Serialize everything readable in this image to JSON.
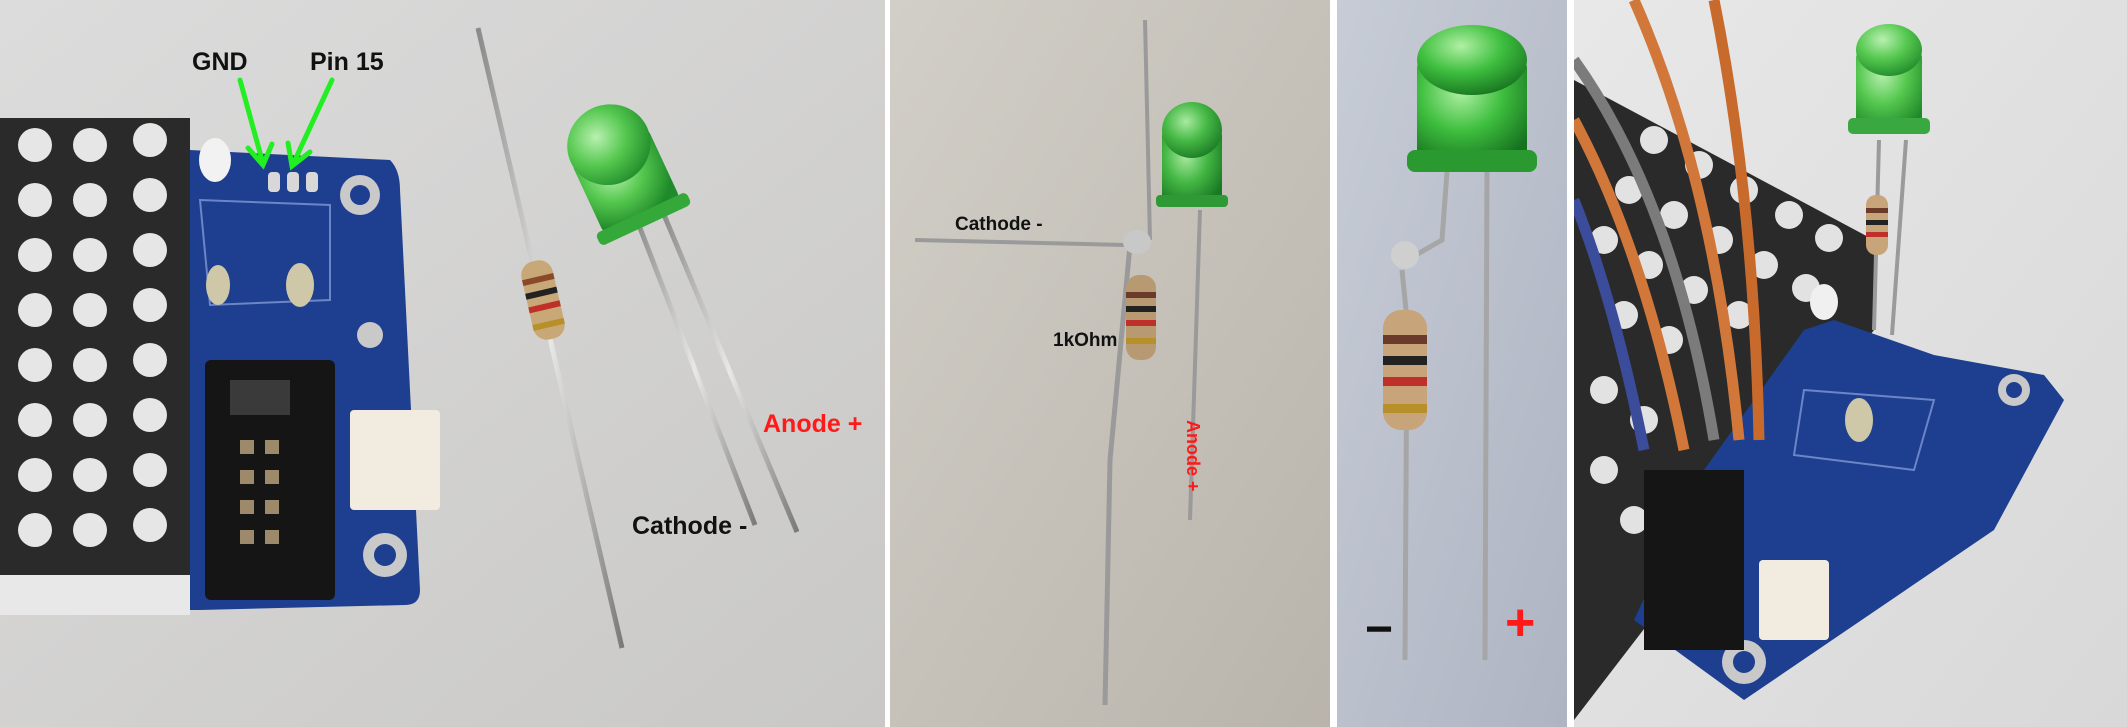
{
  "photos": [
    {
      "id": "board-overview",
      "labels": {
        "gnd": "GND",
        "pin15": "Pin 15",
        "anode": "Anode +",
        "cathode": "Cathode -"
      }
    },
    {
      "id": "soldered-resistor",
      "labels": {
        "cathode": "Cathode -",
        "resistor": "1kOhm",
        "anode": "Anode +"
      }
    },
    {
      "id": "led-closeup",
      "labels": {
        "minus": "−",
        "plus": "+"
      }
    },
    {
      "id": "mounted-led"
    }
  ],
  "colors": {
    "black_label": "#111111",
    "red_label": "#ff1a1a",
    "arrow_green": "#22ee22",
    "pcb_blue": "#1e3f8f",
    "led_green": "#3fbf3f",
    "divider": "#ffffff"
  },
  "icons": [
    "arrow-icon",
    "led-icon",
    "resistor-icon",
    "wire-icon"
  ]
}
